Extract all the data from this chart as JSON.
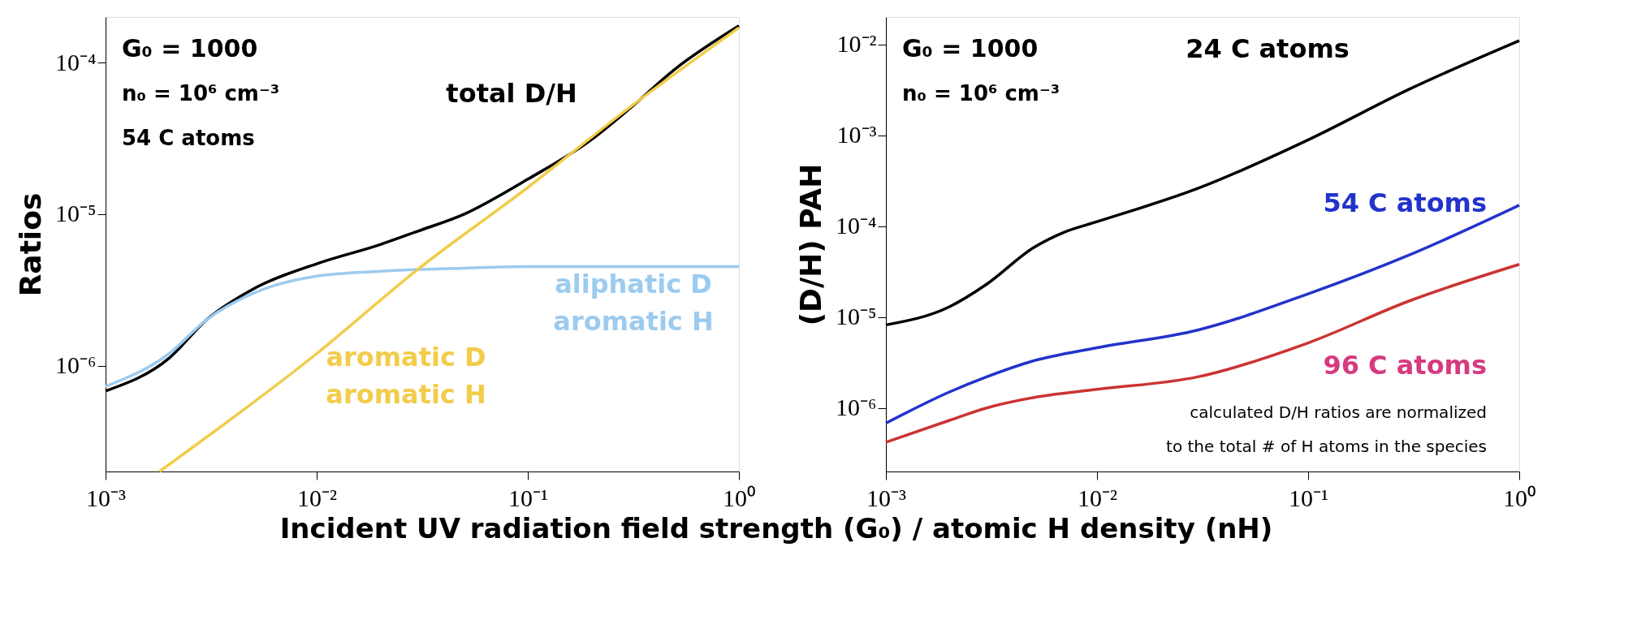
{
  "chart_data": [
    {
      "type": "line",
      "log": "xy",
      "grid": false,
      "xlabel": "Incident UV radiation field strength (G₀) / atomic H density (nH)",
      "ylabel": "Ratios",
      "xlim": [
        0.001,
        1
      ],
      "ylim": [
        2e-07,
        0.0002
      ],
      "xticks": [
        {
          "value": 0.001,
          "label": "10⁻³"
        },
        {
          "value": 0.01,
          "label": "10⁻²"
        },
        {
          "value": 0.1,
          "label": "10⁻¹"
        },
        {
          "value": 1,
          "label": "10⁰"
        }
      ],
      "yticks": [
        {
          "value": 1e-06,
          "label": "10⁻⁶"
        },
        {
          "value": 1e-05,
          "label": "10⁻⁵"
        },
        {
          "value": 0.0001,
          "label": "10⁻⁴"
        }
      ],
      "annotations": [
        "G₀ = 1000",
        "n₀ = 10⁶ cm⁻³",
        "54 C atoms"
      ],
      "series": [
        {
          "name": "total D/H",
          "color": "#000000",
          "x": [
            0.001,
            0.002,
            0.003,
            0.005,
            0.01,
            0.02,
            0.03,
            0.05,
            0.1,
            0.2,
            0.3,
            0.5,
            1
          ],
          "values": [
            6.8e-07,
            1.12e-06,
            2e-06,
            3.2e-06,
            4.7e-06,
            6.3e-06,
            7.7e-06,
            1e-05,
            1.7e-05,
            3.1e-05,
            4.9e-05,
            9.1e-05,
            0.000175
          ]
        },
        {
          "name": "aliphatic D\naromatic H",
          "color": "#9ccbf0",
          "x": [
            0.001,
            0.002,
            0.003,
            0.005,
            0.01,
            0.02,
            0.05,
            0.1,
            1
          ],
          "values": [
            7.3e-07,
            1.2e-06,
            2e-06,
            3e-06,
            3.9e-06,
            4.2e-06,
            4.4e-06,
            4.5e-06,
            4.5e-06
          ]
        },
        {
          "name": "aromatic D\naromatic H",
          "color": "#f2cc4a",
          "x": [
            0.0018,
            0.01,
            0.03,
            0.1,
            0.3,
            1
          ],
          "values": [
            2e-07,
            1.2e-06,
            4.3e-06,
            1.5e-05,
            5e-05,
            0.00017
          ]
        }
      ]
    },
    {
      "type": "line",
      "log": "xy",
      "grid": false,
      "ylabel": "(D/H) PAH",
      "xlim": [
        0.001,
        1
      ],
      "ylim": [
        2e-07,
        0.02
      ],
      "xticks": [
        {
          "value": 0.001,
          "label": "10⁻³"
        },
        {
          "value": 0.01,
          "label": "10⁻²"
        },
        {
          "value": 0.1,
          "label": "10⁻¹"
        },
        {
          "value": 1,
          "label": "10⁰"
        }
      ],
      "yticks": [
        {
          "value": 1e-06,
          "label": "10⁻⁶"
        },
        {
          "value": 1e-05,
          "label": "10⁻⁵"
        },
        {
          "value": 0.0001,
          "label": "10⁻⁴"
        },
        {
          "value": 0.001,
          "label": "10⁻³"
        },
        {
          "value": 0.01,
          "label": "10⁻²"
        }
      ],
      "annotations": [
        "G₀ = 1000",
        "n₀ = 10⁶ cm⁻³",
        "calculated D/H ratios are normalized",
        "to the total # of H atoms in the species"
      ],
      "series": [
        {
          "name": "24 C atoms",
          "color": "#000000",
          "x": [
            0.001,
            0.002,
            0.003,
            0.005,
            0.007,
            0.01,
            0.03,
            0.1,
            0.3,
            1
          ],
          "values": [
            8.2e-06,
            1.3e-05,
            2.3e-05,
            5.8e-05,
            8.6e-05,
            0.000112,
            0.00026,
            0.00089,
            0.0032,
            0.011
          ]
        },
        {
          "name": "54 C atoms",
          "color": "#2233cc",
          "x": [
            0.001,
            0.002,
            0.003,
            0.005,
            0.01,
            0.03,
            0.1,
            0.3,
            1
          ],
          "values": [
            6.8e-07,
            1.5e-06,
            2.2e-06,
            3.3e-06,
            4.6e-06,
            7.2e-06,
            1.8e-05,
            4.8e-05,
            0.00017
          ]
        },
        {
          "name": "96 C atoms",
          "color": "#cc3333",
          "x": [
            0.001,
            0.002,
            0.003,
            0.005,
            0.01,
            0.03,
            0.1,
            0.3,
            1
          ],
          "values": [
            4.2e-07,
            7.3e-07,
            1e-06,
            1.3e-06,
            1.6e-06,
            2.2e-06,
            5.2e-06,
            1.5e-05,
            3.8e-05
          ]
        }
      ]
    }
  ]
}
